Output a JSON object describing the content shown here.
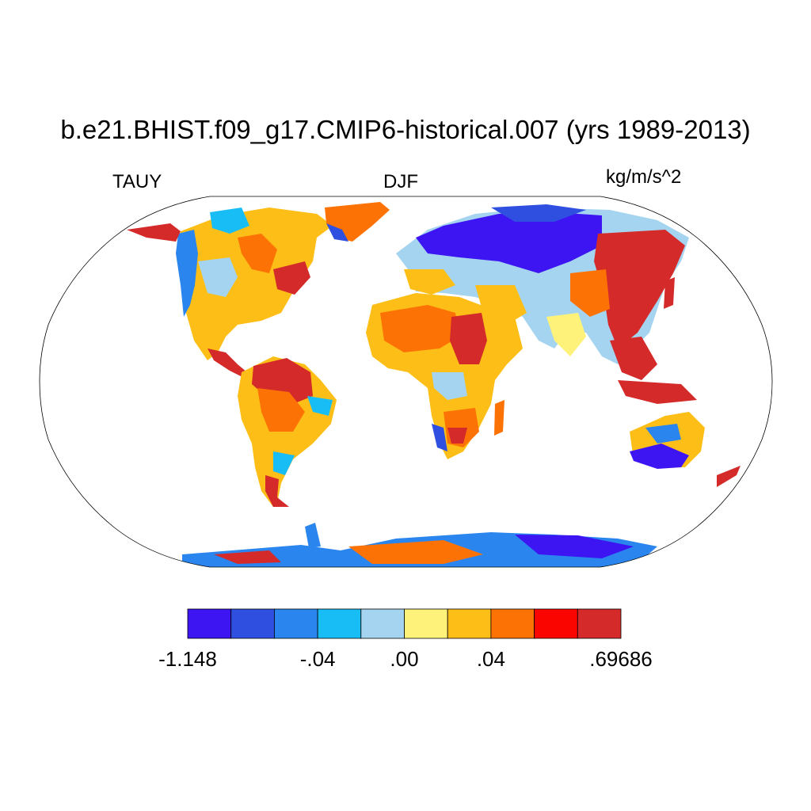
{
  "title": "b.e21.BHIST.f09_g17.CMIP6-historical.007 (yrs 1989-2013)",
  "left_label": "TAUY",
  "center_label": "DJF",
  "right_label": "kg/m/s^2",
  "map": {
    "projection": "Robinson",
    "variable": "TAUY",
    "season": "DJF",
    "field_shown": "land only; ocean blank (white)"
  },
  "colorbar": {
    "colors": [
      "#3d14f2",
      "#2f4fe0",
      "#2a86ee",
      "#18bdf5",
      "#a4d4f0",
      "#fff27a",
      "#fdbf17",
      "#fd7205",
      "#fb0500",
      "#d42a2a"
    ],
    "labels": [
      "-1.148",
      "-.04",
      ".00",
      ".04",
      ".69686"
    ],
    "label_box_index": [
      0,
      3,
      5,
      7,
      10
    ]
  },
  "regions": [
    {
      "name": "siberia-northern-eurasia",
      "color_index": 0
    },
    {
      "name": "eastern-asia",
      "color_index": 9
    },
    {
      "name": "amazon",
      "color_index": 9
    },
    {
      "name": "sahara",
      "color_index": 7
    },
    {
      "name": "east-africa",
      "color_index": 9
    },
    {
      "name": "southern-australia",
      "color_index": 0
    },
    {
      "name": "greenland-tip",
      "color_index": 0
    },
    {
      "name": "antarctica-west",
      "color_index": 8
    },
    {
      "name": "antarctica-east",
      "color_index": 1
    }
  ]
}
